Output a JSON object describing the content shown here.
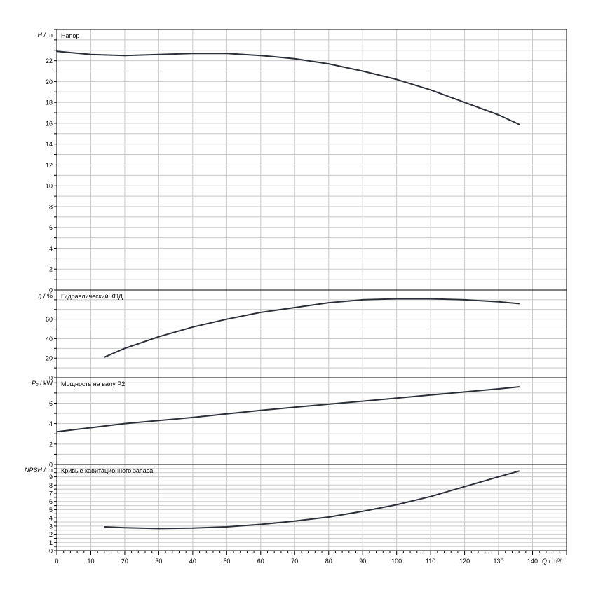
{
  "x_axis": {
    "label_q": "Q",
    "label_unit": "/ m³/h",
    "ticks": [
      0,
      10,
      20,
      30,
      40,
      50,
      60,
      70,
      80,
      90,
      100,
      110,
      120,
      130,
      140
    ]
  },
  "chart_data": [
    {
      "type": "line",
      "title": "Напор",
      "ylabel_var": "H",
      "ylabel_unit": "/ m",
      "xlim": [
        0,
        150
      ],
      "ylim": [
        0,
        25
      ],
      "yticks": [
        0,
        2,
        4,
        6,
        8,
        10,
        12,
        14,
        16,
        18,
        20,
        22
      ],
      "grid": true,
      "series": [
        {
          "x": [
            0,
            10,
            20,
            30,
            40,
            50,
            60,
            70,
            80,
            90,
            100,
            110,
            120,
            130,
            136
          ],
          "y": [
            22.9,
            22.6,
            22.5,
            22.6,
            22.7,
            22.7,
            22.5,
            22.2,
            21.7,
            21.0,
            20.2,
            19.2,
            18.0,
            16.8,
            15.9
          ]
        }
      ]
    },
    {
      "type": "line",
      "title": "Гидравлический КПД",
      "ylabel_var": "η",
      "ylabel_unit": "/ %",
      "xlim": [
        0,
        150
      ],
      "ylim": [
        0,
        90
      ],
      "yticks": [
        0,
        20,
        40,
        60
      ],
      "grid": true,
      "series": [
        {
          "x": [
            14,
            20,
            30,
            40,
            50,
            60,
            70,
            80,
            90,
            100,
            110,
            120,
            130,
            136
          ],
          "y": [
            21,
            30,
            42,
            52,
            60,
            67,
            72,
            77,
            80,
            81,
            81,
            80,
            78,
            76
          ]
        }
      ]
    },
    {
      "type": "line",
      "title": "Мощность на валу P2",
      "ylabel_var": "P₂",
      "ylabel_unit": "/ kW",
      "xlim": [
        0,
        150
      ],
      "ylim": [
        0,
        8.5
      ],
      "yticks": [
        0,
        2,
        4,
        6
      ],
      "grid": true,
      "series": [
        {
          "x": [
            0,
            10,
            20,
            30,
            40,
            50,
            60,
            70,
            80,
            90,
            100,
            110,
            120,
            130,
            136
          ],
          "y": [
            3.2,
            3.6,
            4.0,
            4.3,
            4.6,
            4.95,
            5.3,
            5.6,
            5.9,
            6.2,
            6.5,
            6.8,
            7.1,
            7.4,
            7.6
          ]
        }
      ]
    },
    {
      "type": "line",
      "title": "Кривые кавитационного запаса",
      "ylabel_var": "NPSH",
      "ylabel_unit": "/ m",
      "xlim": [
        0,
        150
      ],
      "ylim": [
        0,
        10.5
      ],
      "yticks": [
        0,
        1,
        2,
        3,
        4,
        5,
        6,
        7,
        8,
        9
      ],
      "grid": true,
      "series": [
        {
          "x": [
            14,
            20,
            30,
            40,
            50,
            60,
            70,
            80,
            90,
            100,
            110,
            120,
            130,
            136
          ],
          "y": [
            2.9,
            2.8,
            2.7,
            2.75,
            2.9,
            3.2,
            3.6,
            4.1,
            4.8,
            5.6,
            6.6,
            7.8,
            9.0,
            9.7
          ]
        }
      ]
    }
  ]
}
